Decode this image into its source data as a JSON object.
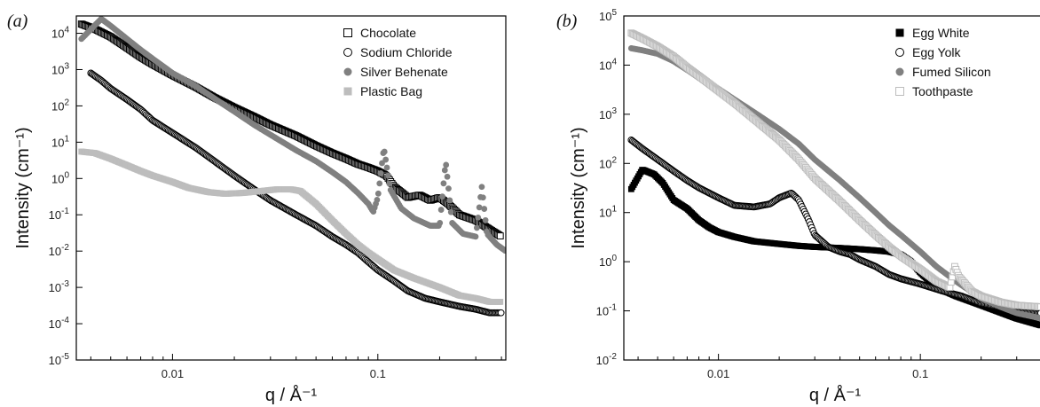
{
  "chart_data": [
    {
      "type": "scatter",
      "panel_label": "(a)",
      "xlabel": "q / Å⁻¹",
      "ylabel": "Intensity (cm⁻¹)",
      "x_scale": "log",
      "y_scale": "log",
      "xlim": [
        0.0034,
        0.42
      ],
      "ylim": [
        1e-05,
        30000
      ],
      "x_ticks": [
        {
          "value": 0.01,
          "label": "0.01"
        },
        {
          "value": 0.1,
          "label": "0.1"
        }
      ],
      "y_ticks": [
        {
          "value": 1e-05,
          "base": "10",
          "exp": "-5"
        },
        {
          "value": 0.0001,
          "base": "10",
          "exp": "-4"
        },
        {
          "value": 0.001,
          "base": "10",
          "exp": "-3"
        },
        {
          "value": 0.01,
          "base": "10",
          "exp": "-2"
        },
        {
          "value": 0.1,
          "base": "10",
          "exp": "-1"
        },
        {
          "value": 1,
          "base": "10",
          "exp": "0"
        },
        {
          "value": 10,
          "base": "10",
          "exp": "1"
        },
        {
          "value": 100,
          "base": "10",
          "exp": "2"
        },
        {
          "value": 1000,
          "base": "10",
          "exp": "3"
        },
        {
          "value": 10000,
          "base": "10",
          "exp": "4"
        }
      ],
      "legend_position": "top-right",
      "series": [
        {
          "name": "Chocolate",
          "marker": "square-open",
          "color": "#000000",
          "points": [
            [
              0.0036,
              18000
            ],
            [
              0.0042,
              13000
            ],
            [
              0.005,
              8000
            ],
            [
              0.006,
              4000
            ],
            [
              0.007,
              2200
            ],
            [
              0.008,
              1400
            ],
            [
              0.01,
              700
            ],
            [
              0.013,
              330
            ],
            [
              0.016,
              170
            ],
            [
              0.02,
              90
            ],
            [
              0.025,
              50
            ],
            [
              0.03,
              30
            ],
            [
              0.04,
              15
            ],
            [
              0.05,
              8
            ],
            [
              0.06,
              5
            ],
            [
              0.07,
              3.5
            ],
            [
              0.08,
              2.5
            ],
            [
              0.09,
              2
            ],
            [
              0.1,
              1.6
            ],
            [
              0.11,
              1.2
            ],
            [
              0.12,
              0.6
            ],
            [
              0.14,
              0.3
            ],
            [
              0.16,
              0.35
            ],
            [
              0.18,
              0.25
            ],
            [
              0.2,
              0.3
            ],
            [
              0.22,
              0.2
            ],
            [
              0.25,
              0.1
            ],
            [
              0.3,
              0.07
            ],
            [
              0.35,
              0.04
            ],
            [
              0.4,
              0.025
            ]
          ]
        },
        {
          "name": "Sodium Chloride",
          "marker": "circle-open",
          "color": "#000000",
          "points": [
            [
              0.004,
              800
            ],
            [
              0.0045,
              500
            ],
            [
              0.005,
              300
            ],
            [
              0.006,
              150
            ],
            [
              0.007,
              80
            ],
            [
              0.008,
              40
            ],
            [
              0.01,
              18
            ],
            [
              0.013,
              7
            ],
            [
              0.016,
              3
            ],
            [
              0.02,
              1.2
            ],
            [
              0.025,
              0.5
            ],
            [
              0.03,
              0.25
            ],
            [
              0.04,
              0.1
            ],
            [
              0.05,
              0.05
            ],
            [
              0.06,
              0.025
            ],
            [
              0.07,
              0.015
            ],
            [
              0.08,
              0.009
            ],
            [
              0.09,
              0.005
            ],
            [
              0.1,
              0.003
            ],
            [
              0.12,
              0.0015
            ],
            [
              0.14,
              0.0008
            ],
            [
              0.17,
              0.0005
            ],
            [
              0.2,
              0.0004
            ],
            [
              0.25,
              0.0003
            ],
            [
              0.3,
              0.00025
            ],
            [
              0.35,
              0.0002
            ],
            [
              0.4,
              0.0002
            ]
          ]
        },
        {
          "name": "Silver Behenate",
          "marker": "circle-filled",
          "color": "#808080",
          "points": [
            [
              0.0036,
              7000
            ],
            [
              0.0045,
              25000
            ],
            [
              0.005,
              16000
            ],
            [
              0.006,
              7000
            ],
            [
              0.007,
              3500
            ],
            [
              0.008,
              2000
            ],
            [
              0.01,
              800
            ],
            [
              0.013,
              350
            ],
            [
              0.016,
              160
            ],
            [
              0.02,
              70
            ],
            [
              0.025,
              30
            ],
            [
              0.03,
              16
            ],
            [
              0.04,
              6
            ],
            [
              0.05,
              3
            ],
            [
              0.06,
              1.5
            ],
            [
              0.07,
              0.8
            ],
            [
              0.08,
              0.4
            ],
            [
              0.09,
              0.2
            ],
            [
              0.095,
              0.12
            ],
            [
              0.1,
              0.3
            ],
            [
              0.107,
              7
            ],
            [
              0.115,
              0.5
            ],
            [
              0.13,
              0.15
            ],
            [
              0.15,
              0.08
            ],
            [
              0.18,
              0.05
            ],
            [
              0.2,
              0.05
            ],
            [
              0.214,
              3
            ],
            [
              0.23,
              0.06
            ],
            [
              0.26,
              0.03
            ],
            [
              0.3,
              0.025
            ],
            [
              0.321,
              0.6
            ],
            [
              0.34,
              0.03
            ],
            [
              0.38,
              0.015
            ],
            [
              0.42,
              0.01
            ]
          ]
        },
        {
          "name": "Plastic Bag",
          "marker": "square-filled",
          "color": "#bdbdbd",
          "points": [
            [
              0.0036,
              5.5
            ],
            [
              0.0042,
              5
            ],
            [
              0.005,
              3.5
            ],
            [
              0.006,
              2.3
            ],
            [
              0.007,
              1.6
            ],
            [
              0.008,
              1.2
            ],
            [
              0.01,
              0.8
            ],
            [
              0.012,
              0.55
            ],
            [
              0.015,
              0.42
            ],
            [
              0.018,
              0.38
            ],
            [
              0.022,
              0.4
            ],
            [
              0.027,
              0.45
            ],
            [
              0.032,
              0.5
            ],
            [
              0.038,
              0.5
            ],
            [
              0.042,
              0.45
            ],
            [
              0.05,
              0.2
            ],
            [
              0.06,
              0.07
            ],
            [
              0.07,
              0.03
            ],
            [
              0.08,
              0.015
            ],
            [
              0.09,
              0.009
            ],
            [
              0.1,
              0.006
            ],
            [
              0.12,
              0.003
            ],
            [
              0.15,
              0.0018
            ],
            [
              0.2,
              0.001
            ],
            [
              0.25,
              0.0006
            ],
            [
              0.3,
              0.0005
            ],
            [
              0.35,
              0.0004
            ],
            [
              0.4,
              0.0004
            ]
          ]
        }
      ]
    },
    {
      "type": "scatter",
      "panel_label": "(b)",
      "xlabel": "q / Å⁻¹",
      "ylabel": "Intensity (cm⁻¹)",
      "x_scale": "log",
      "y_scale": "log",
      "xlim": [
        0.0034,
        0.42
      ],
      "ylim": [
        0.01,
        100000
      ],
      "x_ticks": [
        {
          "value": 0.01,
          "label": "0.01"
        },
        {
          "value": 0.1,
          "label": "0.1"
        }
      ],
      "y_ticks": [
        {
          "value": 0.01,
          "base": "10",
          "exp": "-2"
        },
        {
          "value": 0.1,
          "base": "10",
          "exp": "-1"
        },
        {
          "value": 1,
          "base": "10",
          "exp": "0"
        },
        {
          "value": 10,
          "base": "10",
          "exp": "1"
        },
        {
          "value": 100,
          "base": "10",
          "exp": "2"
        },
        {
          "value": 1000,
          "base": "10",
          "exp": "3"
        },
        {
          "value": 10000,
          "base": "10",
          "exp": "4"
        },
        {
          "value": 100000,
          "base": "10",
          "exp": "5"
        }
      ],
      "legend_position": "top-right",
      "series": [
        {
          "name": "Egg White",
          "marker": "square-filled",
          "color": "#000000",
          "points": [
            [
              0.0037,
              30
            ],
            [
              0.0042,
              75
            ],
            [
              0.0048,
              60
            ],
            [
              0.0053,
              40
            ],
            [
              0.006,
              18
            ],
            [
              0.007,
              12
            ],
            [
              0.008,
              7
            ],
            [
              0.009,
              5
            ],
            [
              0.01,
              4
            ],
            [
              0.012,
              3.2
            ],
            [
              0.015,
              2.6
            ],
            [
              0.02,
              2.3
            ],
            [
              0.025,
              2.1
            ],
            [
              0.03,
              2
            ],
            [
              0.04,
              1.9
            ],
            [
              0.05,
              1.8
            ],
            [
              0.06,
              1.7
            ],
            [
              0.07,
              1.6
            ],
            [
              0.08,
              1.4
            ],
            [
              0.09,
              1
            ],
            [
              0.1,
              0.6
            ],
            [
              0.12,
              0.3
            ],
            [
              0.15,
              0.2
            ],
            [
              0.2,
              0.13
            ],
            [
              0.3,
              0.07
            ],
            [
              0.4,
              0.05
            ]
          ]
        },
        {
          "name": "Egg Yolk",
          "marker": "circle-open",
          "color": "#000000",
          "points": [
            [
              0.0037,
              300
            ],
            [
              0.0042,
              200
            ],
            [
              0.005,
              120
            ],
            [
              0.006,
              70
            ],
            [
              0.007,
              45
            ],
            [
              0.008,
              32
            ],
            [
              0.01,
              20
            ],
            [
              0.012,
              14
            ],
            [
              0.015,
              13
            ],
            [
              0.018,
              15
            ],
            [
              0.02,
              20
            ],
            [
              0.023,
              25
            ],
            [
              0.025,
              18
            ],
            [
              0.028,
              7
            ],
            [
              0.03,
              3.5
            ],
            [
              0.035,
              2
            ],
            [
              0.04,
              1.6
            ],
            [
              0.045,
              1.4
            ],
            [
              0.05,
              1.1
            ],
            [
              0.06,
              0.8
            ],
            [
              0.07,
              0.55
            ],
            [
              0.08,
              0.45
            ],
            [
              0.1,
              0.35
            ],
            [
              0.13,
              0.25
            ],
            [
              0.16,
              0.2
            ],
            [
              0.2,
              0.14
            ],
            [
              0.3,
              0.1
            ],
            [
              0.4,
              0.09
            ]
          ]
        },
        {
          "name": "Fumed Silicon",
          "marker": "circle-filled",
          "color": "#808080",
          "points": [
            [
              0.0037,
              22000
            ],
            [
              0.0042,
              20000
            ],
            [
              0.005,
              17000
            ],
            [
              0.006,
              12000
            ],
            [
              0.007,
              8000
            ],
            [
              0.008,
              5500
            ],
            [
              0.01,
              3300
            ],
            [
              0.012,
              2000
            ],
            [
              0.015,
              1100
            ],
            [
              0.02,
              500
            ],
            [
              0.025,
              250
            ],
            [
              0.03,
              120
            ],
            [
              0.04,
              45
            ],
            [
              0.05,
              20
            ],
            [
              0.06,
              10
            ],
            [
              0.07,
              5.5
            ],
            [
              0.08,
              3.5
            ],
            [
              0.1,
              1.6
            ],
            [
              0.12,
              0.8
            ],
            [
              0.15,
              0.4
            ],
            [
              0.2,
              0.18
            ],
            [
              0.25,
              0.12
            ],
            [
              0.3,
              0.09
            ],
            [
              0.4,
              0.07
            ]
          ]
        },
        {
          "name": "Toothpaste",
          "marker": "square-open",
          "color": "#bdbdbd",
          "points": [
            [
              0.0037,
              45000
            ],
            [
              0.0042,
              35000
            ],
            [
              0.005,
              24000
            ],
            [
              0.006,
              15000
            ],
            [
              0.007,
              9000
            ],
            [
              0.008,
              6000
            ],
            [
              0.01,
              3000
            ],
            [
              0.012,
              1700
            ],
            [
              0.015,
              800
            ],
            [
              0.02,
              300
            ],
            [
              0.025,
              120
            ],
            [
              0.03,
              50
            ],
            [
              0.04,
              17
            ],
            [
              0.05,
              7
            ],
            [
              0.06,
              3.5
            ],
            [
              0.07,
              2
            ],
            [
              0.08,
              1.3
            ],
            [
              0.1,
              0.7
            ],
            [
              0.12,
              0.4
            ],
            [
              0.14,
              0.3
            ],
            [
              0.148,
              0.8
            ],
            [
              0.155,
              0.5
            ],
            [
              0.18,
              0.25
            ],
            [
              0.2,
              0.2
            ],
            [
              0.25,
              0.15
            ],
            [
              0.3,
              0.13
            ],
            [
              0.4,
              0.12
            ]
          ]
        }
      ]
    }
  ]
}
